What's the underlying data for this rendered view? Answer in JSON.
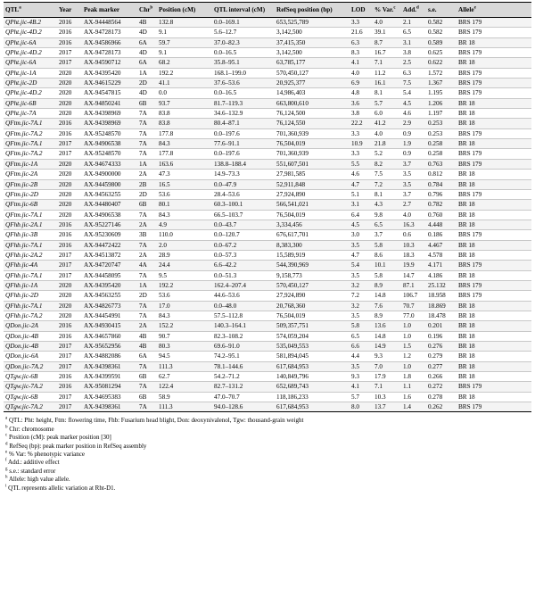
{
  "headers": [
    "QTL",
    "Year",
    "Peak marker",
    "Chr",
    "Position (cM)",
    "QTL interval (cM)",
    "RefSeq position (bp)",
    "LOD",
    "% Var.",
    "Add.",
    "s.e.",
    "Allele"
  ],
  "header_sups": [
    "a",
    "",
    "",
    "b",
    "",
    "",
    "",
    "",
    "c",
    "d",
    "",
    "e"
  ],
  "rows": [
    [
      "QPht.jic-4B.2",
      "2016",
      "AX-94448564",
      "4B",
      "132.8",
      "0.0–169.1",
      "653,525,789",
      "3.3",
      "4.0",
      "2.1",
      "0.582",
      "BRS 179"
    ],
    [
      "QPht.jic-4D.2",
      "2016",
      "AX-94728173",
      "4D",
      "9.1",
      "5.6–12.7",
      "3,142,500",
      "21.6",
      "39.1",
      "6.5",
      "0.582",
      "BRS 179"
    ],
    [
      "QPht.jic-6A",
      "2016",
      "AX-94586966",
      "6A",
      "59.7",
      "37.0–82.3",
      "37,415,350",
      "6.3",
      "8.7",
      "3.1",
      "0.589",
      "BR 18"
    ],
    [
      "QPht.jic-4D.2",
      "2017",
      "AX-94728173",
      "4D",
      "9.1",
      "0.0–16.5",
      "3,142,500",
      "8.3",
      "16.7",
      "3.8",
      "0.625",
      "BRS 179"
    ],
    [
      "QPht.jic-6A",
      "2017",
      "AX-94590712",
      "6A",
      "68.2",
      "35.8–95.1",
      "63,785,177",
      "4.1",
      "7.1",
      "2.5",
      "0.622",
      "BR 18"
    ],
    [
      "QPht.jic-1A",
      "2020",
      "AX-94395420",
      "1A",
      "192.2",
      "168.1–199.0",
      "570,450,127",
      "4.0",
      "11.2",
      "6.3",
      "1.572",
      "BRS 179"
    ],
    [
      "QPht.jic-2D",
      "2020",
      "AX-94615229",
      "2D",
      "41.1",
      "37.6–53.6",
      "20,925,377",
      "6.9",
      "16.1",
      "7.5",
      "1.367",
      "BRS 179"
    ],
    [
      "QPht.jic-4D.2",
      "2020",
      "AX-94547815",
      "4D",
      "0.0",
      "0.0–16.5",
      "14,986,403",
      "4.8",
      "8.1",
      "5.4",
      "1.195",
      "BRS 179"
    ],
    [
      "QPht.jic-6B",
      "2020",
      "AX-94850241",
      "6B",
      "93.7",
      "81.7–119.3",
      "663,800,610",
      "3.6",
      "5.7",
      "4.5",
      "1.206",
      "BR 18"
    ],
    [
      "QPht.jic-7A",
      "2020",
      "AX-94398969",
      "7A",
      "83.8",
      "34.6–132.9",
      "76,124,500",
      "3.8",
      "6.0",
      "4.6",
      "1.197",
      "BR 18"
    ],
    [
      "QFtm.jic-7A.1",
      "2016",
      "AX-94398969",
      "7A",
      "83.8",
      "80.4–87.1",
      "76,124,550",
      "22.2",
      "41.2",
      "2.9",
      "0.253",
      "BR 18"
    ],
    [
      "QFtm.jic-7A.2",
      "2016",
      "AX-95248570",
      "7A",
      "177.8",
      "0.0–197.6",
      "701,360,939",
      "3.3",
      "4.0",
      "0.9",
      "0.253",
      "BRS 179"
    ],
    [
      "QFtm.jic-7A.1",
      "2017",
      "AX-94906538",
      "7A",
      "84.3",
      "77.6–91.1",
      "76,504,019",
      "10.9",
      "21.8",
      "1.9",
      "0.258",
      "BR 18"
    ],
    [
      "QFtm.jic-7A.2",
      "2017",
      "AX-95248570",
      "7A",
      "177.8",
      "0.0–197.6",
      "701,360,939",
      "3.3",
      "5.2",
      "0.9",
      "0.258",
      "BRS 179"
    ],
    [
      "QFtm.jic-1A",
      "2020",
      "AX-94674333",
      "1A",
      "163.6",
      "138.8–188.4",
      "551,607,501",
      "5.5",
      "8.2",
      "3.7",
      "0.763",
      "BRS 179"
    ],
    [
      "QFtm.jic-2A",
      "2020",
      "AX-94900000",
      "2A",
      "47.3",
      "14.9–73.3",
      "27,981,585",
      "4.6",
      "7.5",
      "3.5",
      "0.812",
      "BR 18"
    ],
    [
      "QFtm.jic-2B",
      "2020",
      "AX-94459800",
      "2B",
      "16.5",
      "0.0–47.9",
      "52,911,848",
      "4.7",
      "7.2",
      "3.5",
      "0.784",
      "BR 18"
    ],
    [
      "QFtm.jic-2D",
      "2020",
      "AX-94563255",
      "2D",
      "53.6",
      "28.4–53.6",
      "27,924,890",
      "5.1",
      "8.1",
      "3.7",
      "0.796",
      "BRS 179"
    ],
    [
      "QFtm.jic-6B",
      "2020",
      "AX-94480407",
      "6B",
      "80.1",
      "60.3–100.1",
      "566,541,021",
      "3.1",
      "4.3",
      "2.7",
      "0.782",
      "BR 18"
    ],
    [
      "QFtm.jic-7A.1",
      "2020",
      "AX-94906538",
      "7A",
      "84.3",
      "66.5–103.7",
      "76,504,019",
      "6.4",
      "9.8",
      "4.0",
      "0.760",
      "BR 18"
    ],
    [
      "QFhb.jic-2A.1",
      "2016",
      "AX-95227146",
      "2A",
      "4.9",
      "0.0–43.7",
      "3,334,456",
      "4.5",
      "6.5",
      "16.3",
      "4.448",
      "BR 18"
    ],
    [
      "QFhb.jic-3B",
      "2016",
      "AX-95230609",
      "3B",
      "110.0",
      "0.0–120.7",
      "676,617,701",
      "3.0",
      "3.7",
      "0.6",
      "0.186",
      "BRS 179"
    ],
    [
      "QFhb.jic-7A.1",
      "2016",
      "AX-94472422",
      "7A",
      "2.0",
      "0.0–67.2",
      "8,383,300",
      "3.5",
      "5.8",
      "10.3",
      "4.467",
      "BR 18"
    ],
    [
      "QFhb.jic-2A.2",
      "2017",
      "AX-94513872",
      "2A",
      "28.9",
      "0.0–57.3",
      "15,589,919",
      "4.7",
      "8.6",
      "18.3",
      "4.578",
      "BR 18"
    ],
    [
      "QFhb.jic-4A",
      "2017",
      "AX-94720747",
      "4A",
      "24.4",
      "6.6–42.2",
      "544,390,969",
      "5.4",
      "10.1",
      "19.9",
      "4.171",
      "BRS 179"
    ],
    [
      "QFhb.jic-7A.1",
      "2017",
      "AX-94458095",
      "7A",
      "9.5",
      "0.0–51.3",
      "9,158,773",
      "3.5",
      "5.8",
      "14.7",
      "4.186",
      "BR 18"
    ],
    [
      "QFhb.jic-1A",
      "2020",
      "AX-94395420",
      "1A",
      "192.2",
      "162.4–207.4",
      "570,450,127",
      "3.2",
      "8.9",
      "87.1",
      "25.132",
      "BRS 179"
    ],
    [
      "QFhb.jic-2D",
      "2020",
      "AX-94563255",
      "2D",
      "53.6",
      "44.6–53.6",
      "27,924,890",
      "7.2",
      "14.8",
      "106.7",
      "18.958",
      "BRS 179"
    ],
    [
      "QFhb.jic-7A.1",
      "2020",
      "AX-94826773",
      "7A",
      "17.0",
      "0.0–48.0",
      "20,768,360",
      "3.2",
      "7.6",
      "70.7",
      "18.869",
      "BR 18"
    ],
    [
      "QFhb.jic-7A.2",
      "2020",
      "AX-94454991",
      "7A",
      "84.3",
      "57.5–112.8",
      "76,504,019",
      "3.5",
      "8.9",
      "77.0",
      "18.478",
      "BR 18"
    ],
    [
      "QDon.jic-2A",
      "2016",
      "AX-94930415",
      "2A",
      "152.2",
      "140.3–164.1",
      "509,357,751",
      "5.8",
      "13.6",
      "1.0",
      "0.201",
      "BR 18"
    ],
    [
      "QDon.jic-4B",
      "2016",
      "AX-94657860",
      "4B",
      "90.7",
      "82.3–108.2",
      "574,059,204",
      "6.5",
      "14.8",
      "1.0",
      "0.196",
      "BR 18"
    ],
    [
      "QDon.jic-4B",
      "2017",
      "AX-95652956",
      "4B",
      "80.3",
      "69.6–91.0",
      "535,049,553",
      "6.6",
      "14.9",
      "1.5",
      "0.276",
      "BR 18"
    ],
    [
      "QDon.jic-6A",
      "2017",
      "AX-94882086",
      "6A",
      "94.5",
      "74.2–95.1",
      "581,894,045",
      "4.4",
      "9.3",
      "1.2",
      "0.279",
      "BR 18"
    ],
    [
      "QDon.jic-7A.2",
      "2017",
      "AX-94398361",
      "7A",
      "111.3",
      "78.1–144.6",
      "617,684,953",
      "3.5",
      "7.0",
      "1.0",
      "0.277",
      "BR 18"
    ],
    [
      "QTgw.jic-6B",
      "2016",
      "AX-94399591",
      "6B",
      "62.7",
      "54.2–71.2",
      "140,849,796",
      "9.3",
      "17.9",
      "1.8",
      "0.266",
      "BR 18"
    ],
    [
      "QTgw.jic-7A.2",
      "2016",
      "AX-95081294",
      "7A",
      "122.4",
      "82.7–131.2",
      "652,689,743",
      "4.1",
      "7.1",
      "1.1",
      "0.272",
      "BRS 179"
    ],
    [
      "QTgw.jic-6B",
      "2017",
      "AX-94695383",
      "6B",
      "58.9",
      "47.0–70.7",
      "118,186,233",
      "5.7",
      "10.3",
      "1.6",
      "0.278",
      "BR 18"
    ],
    [
      "QTgw.jic-7A.2",
      "2017",
      "AX-94398361",
      "7A",
      "111.3",
      "94.0–128.6",
      "617,684,953",
      "8.0",
      "13.7",
      "1.4",
      "0.262",
      "BRS 179"
    ]
  ],
  "footnotes": [
    {
      "sup": "a",
      "label": "QTL: ",
      "text": "Pht: height, Ftm: flowering time, Fhb: Fusarium head blight, Don: deoxynivalenol, Tgw: thousand-grain weight"
    },
    {
      "sup": "b",
      "label": "",
      "text": "Chr: chromosome"
    },
    {
      "sup": "c",
      "label": "",
      "text": "Position (cM): peak marker position [30]"
    },
    {
      "sup": "d",
      "label": "",
      "text": "RefSeq (bp): peak marker position in RefSeq assembly"
    },
    {
      "sup": "e",
      "label": "",
      "text": "% Var: % phenotypic variance"
    },
    {
      "sup": "f",
      "label": "",
      "text": "Add.: additive effect"
    },
    {
      "sup": "g",
      "label": "",
      "text": "s.e.: standard error"
    },
    {
      "sup": "h",
      "label": "",
      "text": "Allele: high value allele."
    },
    {
      "sup": "i",
      "label": "",
      "text": "QTL represents allelic variation at Rht-D1."
    }
  ]
}
